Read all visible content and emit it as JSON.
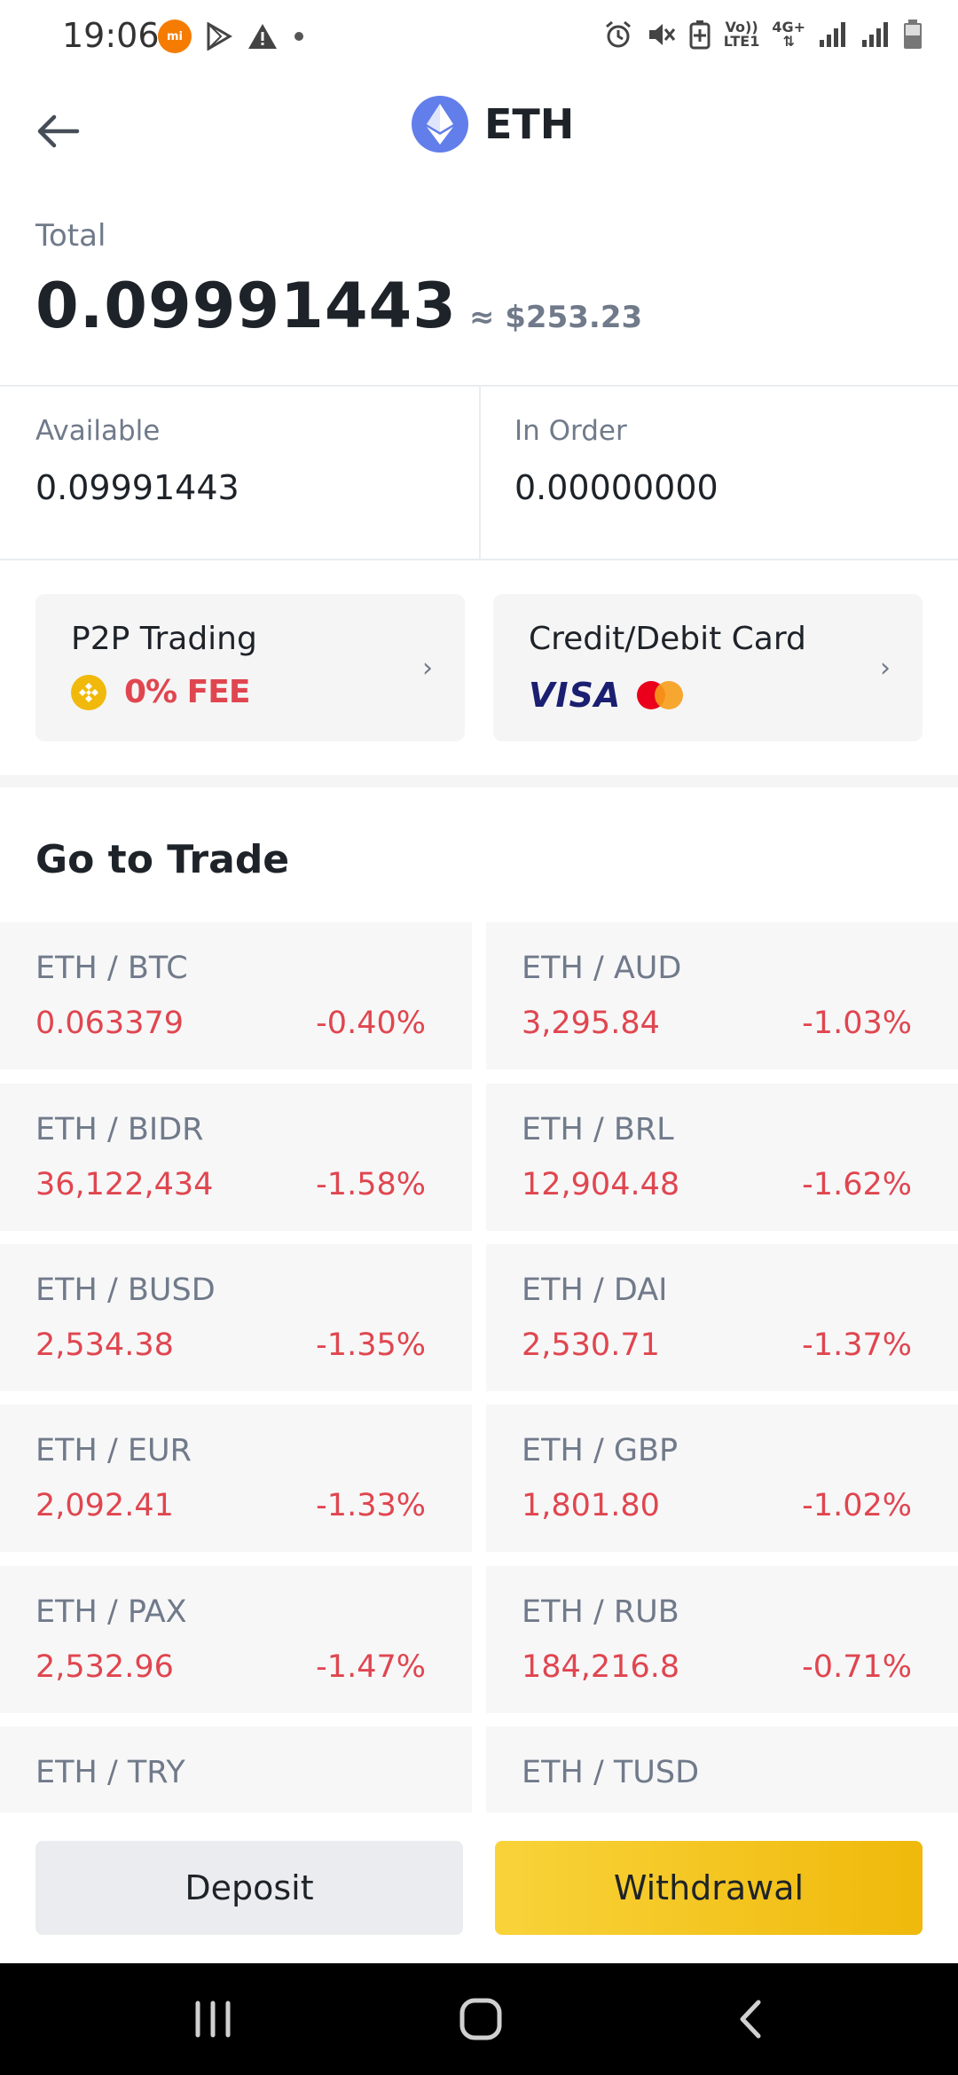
{
  "status_bar": {
    "time": "19:06",
    "volte": "Vo))",
    "lte": "LTE1",
    "net": "4G+"
  },
  "header": {
    "title": "ETH",
    "icon": "ethereum-logo"
  },
  "total": {
    "label": "Total",
    "value": "0.09991443",
    "fiat": "≈ $253.23"
  },
  "balances": {
    "available": {
      "label": "Available",
      "value": "0.09991443"
    },
    "in_order": {
      "label": "In Order",
      "value": "0.00000000"
    }
  },
  "promo": {
    "p2p": {
      "title": "P2P Trading",
      "fee": "0% FEE"
    },
    "card": {
      "title": "Credit/Debit Card",
      "visa": "VISA"
    }
  },
  "trade": {
    "title": "Go to Trade",
    "pairs": [
      {
        "pair": "ETH / BTC",
        "price": "0.063379",
        "change": "-0.40%"
      },
      {
        "pair": "ETH / AUD",
        "price": "3,295.84",
        "change": "-1.03%"
      },
      {
        "pair": "ETH / BIDR",
        "price": "36,122,434",
        "change": "-1.58%"
      },
      {
        "pair": "ETH / BRL",
        "price": "12,904.48",
        "change": "-1.62%"
      },
      {
        "pair": "ETH / BUSD",
        "price": "2,534.38",
        "change": "-1.35%"
      },
      {
        "pair": "ETH / DAI",
        "price": "2,530.71",
        "change": "-1.37%"
      },
      {
        "pair": "ETH / EUR",
        "price": "2,092.41",
        "change": "-1.33%"
      },
      {
        "pair": "ETH / GBP",
        "price": "1,801.80",
        "change": "-1.02%"
      },
      {
        "pair": "ETH / PAX",
        "price": "2,532.96",
        "change": "-1.47%"
      },
      {
        "pair": "ETH / RUB",
        "price": "184,216.8",
        "change": "-0.71%"
      },
      {
        "pair": "ETH / TRY",
        "price": "",
        "change": ""
      },
      {
        "pair": "ETH / TUSD",
        "price": "",
        "change": ""
      }
    ]
  },
  "actions": {
    "deposit": "Deposit",
    "withdrawal": "Withdrawal"
  },
  "colors": {
    "negative": "#e0464f",
    "accent": "#f0b90b",
    "muted": "#707a8a"
  }
}
